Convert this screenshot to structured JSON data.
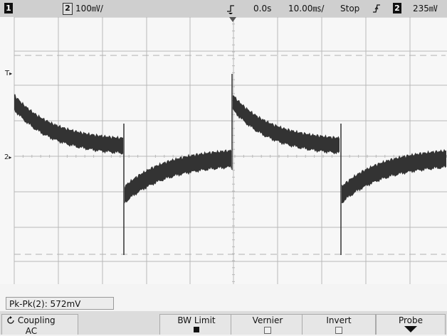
{
  "top_bar": {
    "ch1_badge": "1",
    "ch2_badge": "2",
    "ch2_scale": "100㎷/",
    "time_offset": "0.0s",
    "time_scale": "10.00㎳/",
    "run_state": "Stop",
    "trigger_source_badge": "2",
    "trigger_level": "235㎷"
  },
  "markers": {
    "trigger_level_marker": "T",
    "channel2_ground_marker": "2"
  },
  "measurement": {
    "readout": "Pk-Pk(2): 572mV"
  },
  "softkeys": {
    "coupling_label": "Coupling",
    "coupling_value": "AC",
    "bw_limit_label": "BW Limit",
    "vernier_label": "Vernier",
    "invert_label": "Invert",
    "probe_label": "Probe"
  },
  "softkey_states": {
    "bw_limit_enabled": true,
    "vernier_enabled": false,
    "invert_enabled": false
  },
  "colors": {
    "trace": "#333333",
    "grid": "#b9b9b9",
    "screen_bg": "#f7f7f7",
    "topbar_bg": "#cfcfcf"
  },
  "icons": {
    "coupling_cycle": "cycle-arrow-icon",
    "trigger_edge": "rising-edge-icon",
    "probe_menu": "down-arrow-icon"
  }
}
